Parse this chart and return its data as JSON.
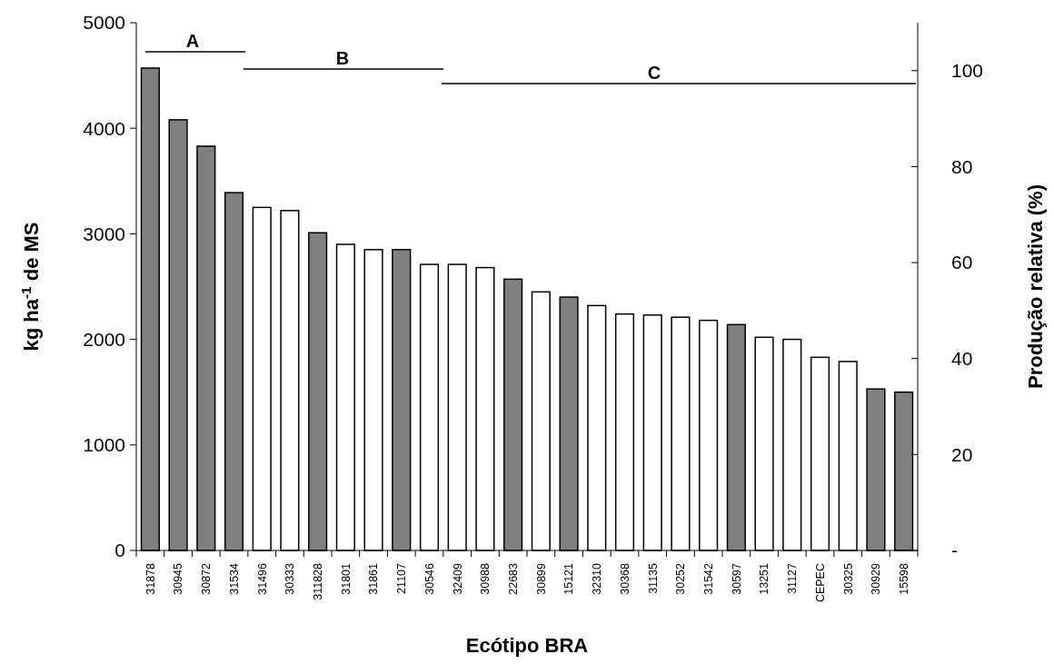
{
  "chart_data": {
    "type": "bar",
    "xlabel": "Ecótipo BRA",
    "ylabel": "kg ha$^{-1}$ de MS",
    "y2label": "Produção relativa (%)",
    "categories": [
      "31878",
      "30945",
      "30872",
      "31534",
      "31496",
      "30333",
      "311828",
      "31801",
      "31861",
      "21107",
      "30546",
      "32409",
      "30988",
      "22683",
      "30899",
      "15121",
      "32310",
      "30368",
      "31135",
      "30252",
      "31542",
      "30597",
      "13251",
      "31127",
      "CEPEC",
      "30325",
      "30929",
      "15598"
    ],
    "values": [
      4570,
      4080,
      3830,
      3390,
      3250,
      3220,
      3010,
      2900,
      2850,
      2850,
      2710,
      2710,
      2680,
      2570,
      2450,
      2400,
      2320,
      2240,
      2230,
      2210,
      2180,
      2140,
      2020,
      2000,
      1830,
      1790,
      1530,
      1500
    ],
    "colors": [
      "#808080",
      "#808080",
      "#808080",
      "#808080",
      "#ffffff",
      "#ffffff",
      "#808080",
      "#ffffff",
      "#ffffff",
      "#808080",
      "#ffffff",
      "#ffffff",
      "#ffffff",
      "#808080",
      "#ffffff",
      "#808080",
      "#ffffff",
      "#ffffff",
      "#ffffff",
      "#ffffff",
      "#ffffff",
      "#808080",
      "#ffffff",
      "#ffffff",
      "#ffffff",
      "#ffffff",
      "#808080",
      "#808080"
    ],
    "ylim": [
      0,
      5000
    ],
    "yticks": [
      0,
      1000,
      2000,
      3000,
      4000,
      5000
    ],
    "y2lim": [
      0,
      110
    ],
    "y2ticks": [
      {
        "value": 0,
        "label": "-"
      },
      20,
      40,
      60,
      80,
      100
    ],
    "annotations": [
      "A",
      "B",
      "C"
    ],
    "grid": false
  }
}
